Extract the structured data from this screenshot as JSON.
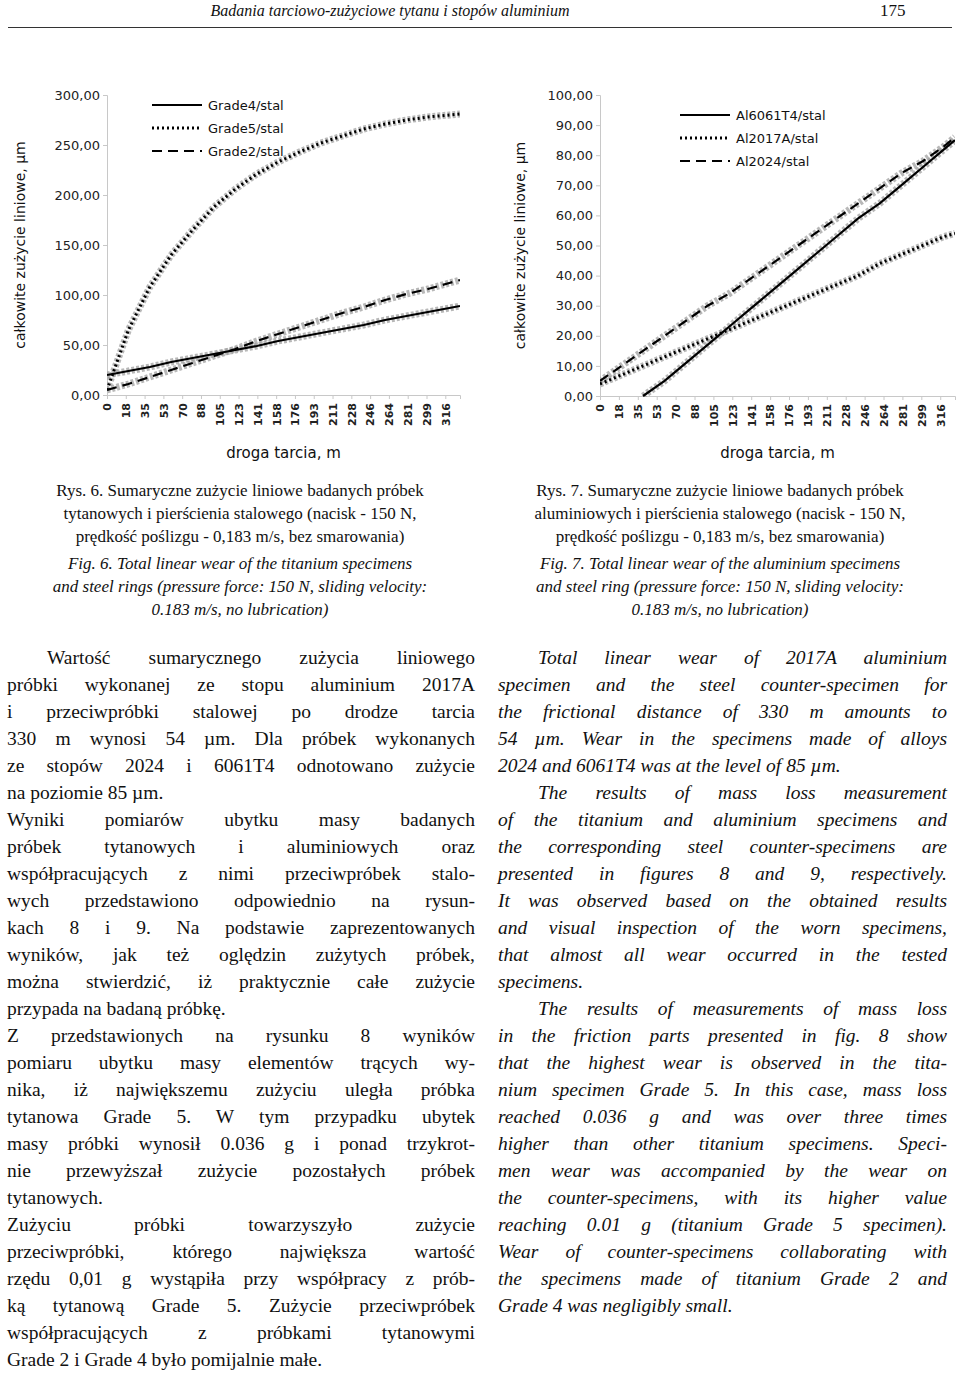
{
  "header": {
    "title": "Badania tarciowo-zużyciowe tytanu i stopów aluminium",
    "page": "175"
  },
  "chart_data": [
    {
      "type": "line",
      "x_label": "droga tarcia, m",
      "y_label": "całkowite zużycie liniowe, µm",
      "legend": "top-left",
      "x": [
        0,
        20,
        40,
        60,
        80,
        100,
        120,
        140,
        160,
        180,
        200,
        220,
        240,
        260,
        280,
        300,
        320,
        330
      ],
      "xlim": [
        0,
        330
      ],
      "xticks": [
        {
          "value": 0,
          "label": "0"
        },
        {
          "value": 17.57,
          "label": "18"
        },
        {
          "value": 35.14,
          "label": "35"
        },
        {
          "value": 52.71,
          "label": "53"
        },
        {
          "value": 70.28,
          "label": "70"
        },
        {
          "value": 87.85,
          "label": "88"
        },
        {
          "value": 105.42,
          "label": "105"
        },
        {
          "value": 122.99,
          "label": "123"
        },
        {
          "value": 140.56,
          "label": "141"
        },
        {
          "value": 158.13,
          "label": "158"
        },
        {
          "value": 175.7,
          "label": "176"
        },
        {
          "value": 193.27,
          "label": "193"
        },
        {
          "value": 210.84,
          "label": "211"
        },
        {
          "value": 228.41,
          "label": "228"
        },
        {
          "value": 245.98,
          "label": "246"
        },
        {
          "value": 263.55,
          "label": "264"
        },
        {
          "value": 281.12,
          "label": "281"
        },
        {
          "value": 298.69,
          "label": "299"
        },
        {
          "value": 316.26,
          "label": "316"
        }
      ],
      "ylim": [
        0,
        300
      ],
      "yticks": [
        {
          "value": 0,
          "label": "0,00"
        },
        {
          "value": 50,
          "label": "50,00"
        },
        {
          "value": 100,
          "label": "100,00"
        },
        {
          "value": 150,
          "label": "150,00"
        },
        {
          "value": 200,
          "label": "200,00"
        },
        {
          "value": 250,
          "label": "250,00"
        },
        {
          "value": 300,
          "label": "300,00"
        }
      ],
      "series": [
        {
          "name": "Grade4/stal",
          "color": "#000000",
          "line_style": "solid",
          "values": [
            20,
            24,
            28,
            33,
            37,
            41,
            45,
            49,
            54,
            58,
            62,
            66,
            70,
            75,
            79,
            83,
            87,
            89
          ]
        },
        {
          "name": "Grade5/stal",
          "color": "#000000",
          "line_style": "dotted",
          "values": [
            5,
            65,
            108,
            140,
            165,
            188,
            206,
            221,
            233,
            243,
            252,
            259,
            266,
            271,
            275,
            278,
            280,
            281
          ]
        },
        {
          "name": "Grade2/stal",
          "color": "#000000",
          "line_style": "dashed",
          "values": [
            5,
            11,
            18,
            25,
            32,
            39,
            46,
            54,
            61,
            68,
            75,
            82,
            88,
            95,
            101,
            106,
            112,
            115
          ]
        }
      ]
    },
    {
      "type": "line",
      "x_label": "droga tarcia, m",
      "y_label": "całkowite zużycie liniowe, µm",
      "legend": "top-left",
      "x": [
        0,
        20,
        40,
        60,
        80,
        100,
        120,
        140,
        160,
        180,
        200,
        220,
        240,
        260,
        280,
        300,
        320,
        330
      ],
      "xlim": [
        0,
        330
      ],
      "xticks": [
        {
          "value": 0,
          "label": "0"
        },
        {
          "value": 17.57,
          "label": "18"
        },
        {
          "value": 35.14,
          "label": "35"
        },
        {
          "value": 52.71,
          "label": "53"
        },
        {
          "value": 70.28,
          "label": "70"
        },
        {
          "value": 87.85,
          "label": "88"
        },
        {
          "value": 105.42,
          "label": "105"
        },
        {
          "value": 122.99,
          "label": "123"
        },
        {
          "value": 140.56,
          "label": "141"
        },
        {
          "value": 158.13,
          "label": "158"
        },
        {
          "value": 175.7,
          "label": "176"
        },
        {
          "value": 193.27,
          "label": "193"
        },
        {
          "value": 210.84,
          "label": "211"
        },
        {
          "value": 228.41,
          "label": "228"
        },
        {
          "value": 245.98,
          "label": "246"
        },
        {
          "value": 263.55,
          "label": "264"
        },
        {
          "value": 281.12,
          "label": "281"
        },
        {
          "value": 298.69,
          "label": "299"
        },
        {
          "value": 316.26,
          "label": "316"
        }
      ],
      "ylim": [
        0,
        100
      ],
      "yticks": [
        {
          "value": 0,
          "label": "0,00"
        },
        {
          "value": 10,
          "label": "10,00"
        },
        {
          "value": 20,
          "label": "20,00"
        },
        {
          "value": 30,
          "label": "30,00"
        },
        {
          "value": 40,
          "label": "40,00"
        },
        {
          "value": 50,
          "label": "50,00"
        },
        {
          "value": 60,
          "label": "60,00"
        },
        {
          "value": 70,
          "label": "70,00"
        },
        {
          "value": 80,
          "label": "80,00"
        },
        {
          "value": 90,
          "label": "90,00"
        },
        {
          "value": 100,
          "label": "100,00"
        }
      ],
      "series": [
        {
          "name": "Al6061T4/stal",
          "color": "#000000",
          "line_style": "solid",
          "values": [
            null,
            null,
            0,
            5,
            11,
            17,
            23,
            29,
            35,
            41,
            47,
            53,
            59,
            64,
            70,
            76,
            82,
            85
          ]
        },
        {
          "name": "Al2017A/stal",
          "color": "#000000",
          "line_style": "dotted",
          "values": [
            4,
            7,
            10,
            13,
            16,
            19,
            22,
            25,
            28,
            31,
            34,
            37,
            40,
            44,
            47,
            50,
            53,
            54
          ]
        },
        {
          "name": "Al2024/stal",
          "color": "#000000",
          "line_style": "dashed",
          "values": [
            5,
            10,
            15,
            20,
            25,
            30,
            34,
            39,
            44,
            49,
            54,
            59,
            64,
            69,
            74,
            78,
            83,
            86
          ]
        }
      ]
    }
  ],
  "captions": [
    {
      "pl": [
        "Rys. 6. Sumaryczne zużycie liniowe badanych próbek",
        "tytanowych i pierścienia stalowego (nacisk - 150 N,",
        "prędkość poślizgu - 0,183 m/s, bez smarowania)"
      ],
      "en": [
        "Fig. 6. Total linear wear of the titanium specimens",
        "and steel rings (pressure force: 150 N, sliding velocity:",
        "0.183 m/s, no lubrication)"
      ]
    },
    {
      "pl": [
        "Rys. 7. Sumaryczne zużycie liniowe badanych próbek",
        "aluminiowych i pierścienia stalowego (nacisk - 150 N,",
        "prędkość poślizgu - 0,183 m/s, bez smarowania)"
      ],
      "en": [
        "Fig. 7. Total linear wear of the aluminium specimens",
        "and steel ring (pressure force: 150 N, sliding velocity:",
        "0.183 m/s, no lubrication)"
      ]
    }
  ],
  "body": {
    "left": [
      {
        "lines": [
          "Wartość sumarycznego zużycia liniowego",
          "próbki wykonanej ze stopu aluminium 2017A",
          "i przeciwpróbki stalowej po drodze tarcia",
          "330 m wynosi 54 µm. Dla próbek wykonanych",
          "ze stopów 2024 i 6061T4 odnotowano zużycie",
          "na poziomie 85 µm."
        ]
      },
      {
        "lines": [
          "Wyniki pomiarów ubytku masy badanych",
          "próbek tytanowych i aluminiowych oraz",
          "współpracujących z nimi przeciwpróbek stalo-",
          "wych przedstawiono odpowiednio na rysun-",
          "kach 8 i 9. Na podstawie zaprezentowanych",
          "wyników, jak też oględzin zużytych próbek,",
          "można stwierdzić, iż praktycznie całe zużycie",
          "przypada na badaną próbkę."
        ]
      },
      {
        "lines": [
          "Z przedstawionych na rysunku 8 wyników",
          "pomiaru ubytku masy elementów trących wy-",
          "nika, iż największemu zużyciu uległa próbka",
          "tytanowa Grade 5. W tym przypadku ubytek",
          "masy próbki wynosił 0.036 g i ponad trzykrot-",
          "nie przewyższał zużycie pozostałych próbek",
          "tytanowych."
        ]
      },
      {
        "lines": [
          "Zużyciu próbki towarzyszyło zużycie",
          "przeciwpróbki, którego największa wartość",
          "rzędu 0,01 g wystąpiła przy współpracy z prób-",
          "ką tytanową Grade 5. Zużycie przeciwpróbek",
          "współpracujących z próbkami tytanowymi",
          "Grade 2 i Grade 4 było pomijalnie małe."
        ]
      }
    ],
    "right": [
      {
        "lines": [
          "Total linear wear of 2017A aluminium",
          "specimen and the steel counter-specimen for",
          "the frictional distance of 330 m amounts to",
          "54 µm. Wear in the specimens made of alloys",
          "2024 and 6061T4 was at the level of 85 µm."
        ]
      },
      {
        "lines": [
          "The results of mass loss measurement",
          "of the titanium and aluminium specimens and",
          "the corresponding steel counter-specimens are",
          "presented in figures 8 and 9, respectively.",
          "It was observed based on the obtained results",
          "and visual inspection of the worn specimens,",
          "that almost all wear occurred in the tested",
          "specimens."
        ]
      },
      {
        "lines": [
          "The results of measurements of mass loss",
          "in the friction parts presented in fig. 8 show",
          "that the highest wear is observed in the tita-",
          "nium specimen Grade 5. In this case, mass loss",
          "reached 0.036 g and was over three times",
          "higher than other titanium specimens. Speci-",
          "men wear was accompanied by the wear on",
          "the counter-specimens, with its higher value",
          "reaching 0.01 g (titanium Grade 5 specimen).",
          "Wear of counter-specimens collaborating with",
          "the specimens made of titanium Grade 2 and",
          "Grade 4 was negligibly small."
        ]
      }
    ]
  }
}
